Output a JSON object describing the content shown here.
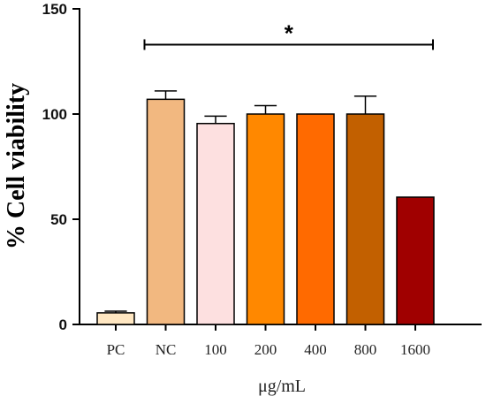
{
  "chart_data": {
    "type": "bar",
    "xlabel": "μg/mL",
    "ylabel": "% Cell viability",
    "ylim": [
      0,
      150
    ],
    "yticks": [
      "0",
      "50",
      "100",
      "150"
    ],
    "ytick_values": [
      0,
      50,
      100,
      150
    ],
    "categories": [
      "PC",
      "NC",
      "100",
      "200",
      "400",
      "800",
      "1600"
    ],
    "values": [
      5.5,
      107,
      95.5,
      100,
      100,
      100,
      60.5
    ],
    "errors": [
      0.8,
      4,
      3.5,
      4,
      0,
      8.5,
      0
    ],
    "colors": [
      "#FFE7C2",
      "#F2B880",
      "#FDE0E0",
      "#FF8800",
      "#FF6A00",
      "#C26000",
      "#A00000"
    ],
    "significance": {
      "label": "*",
      "from_category": "NC",
      "to_category": "1600",
      "y": 133
    },
    "grid": false,
    "legend": "none"
  }
}
